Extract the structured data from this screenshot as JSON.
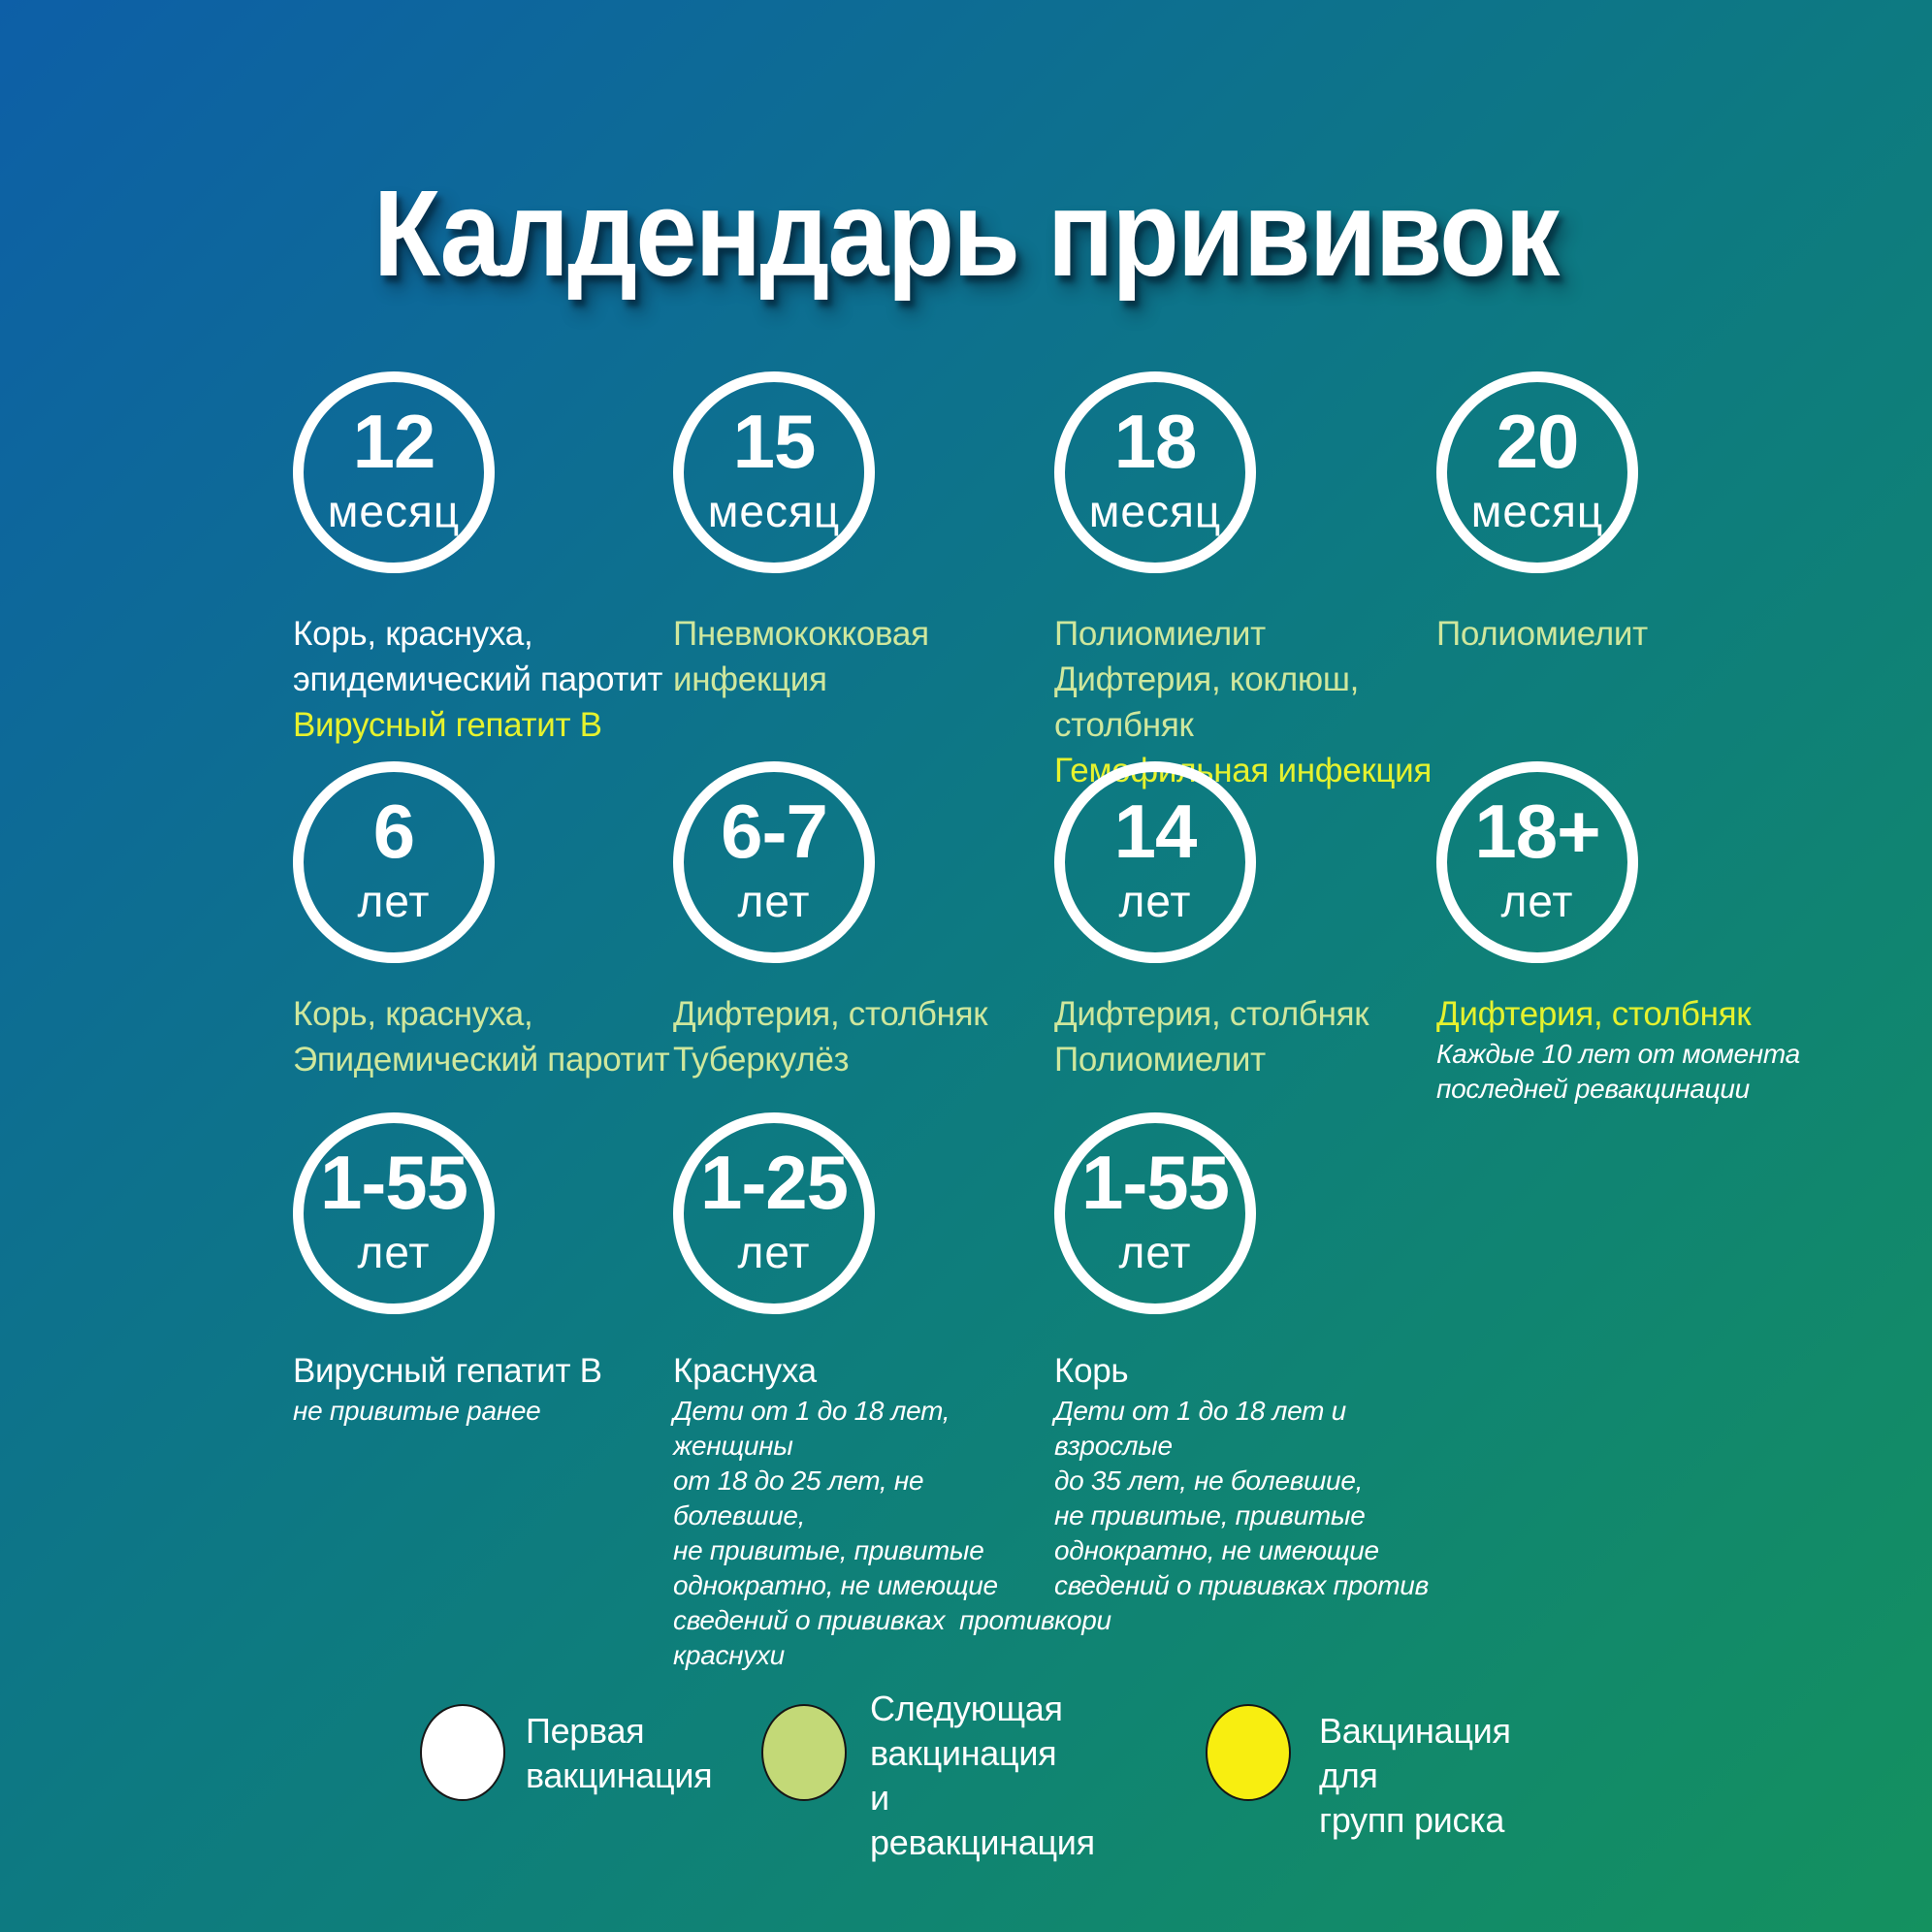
{
  "title": "Калдендарь прививок",
  "colors": {
    "white": "#ffffff",
    "green": "#cfe79d",
    "yellow": "#e6f22e",
    "legend_white": "#ffffff",
    "legend_green": "#c3d977",
    "legend_yellow": "#f8ee10"
  },
  "rows": [
    {
      "cells": [
        {
          "age": "12",
          "unit": "месяц",
          "lines": [
            {
              "text": "Корь, краснуха,",
              "color": "white"
            },
            {
              "text": "эпидемический паротит",
              "color": "white"
            },
            {
              "text": "Вирусный гепатит В",
              "color": "yellow"
            }
          ]
        },
        {
          "age": "15",
          "unit": "месяц",
          "lines": [
            {
              "text": "Пневмококковая",
              "color": "green"
            },
            {
              "text": "инфекция",
              "color": "green"
            }
          ]
        },
        {
          "age": "18",
          "unit": "месяц",
          "lines": [
            {
              "text": "Полиомиелит",
              "color": "green"
            },
            {
              "text": "Дифтерия, коклюш, столбняк",
              "color": "green"
            },
            {
              "text": "Гемофильная инфекция",
              "color": "yellow"
            }
          ]
        },
        {
          "age": "20",
          "unit": "месяц",
          "lines": [
            {
              "text": "Полиомиелит",
              "color": "green"
            }
          ]
        }
      ]
    },
    {
      "cells": [
        {
          "age": "6",
          "unit": "лет",
          "lines": [
            {
              "text": "Корь, краснуха,",
              "color": "green"
            },
            {
              "text": "Эпидемический паротит",
              "color": "green"
            }
          ]
        },
        {
          "age": "6-7",
          "unit": "лет",
          "lines": [
            {
              "text": "Дифтерия, столбняк",
              "color": "green"
            },
            {
              "text": "Туберкулёз",
              "color": "green"
            }
          ]
        },
        {
          "age": "14",
          "unit": "лет",
          "lines": [
            {
              "text": "Дифтерия, столбняк",
              "color": "green"
            },
            {
              "text": "Полиомиелит",
              "color": "green"
            }
          ]
        },
        {
          "age": "18+",
          "unit": "лет",
          "lines": [
            {
              "text": "Дифтерия, столбняк",
              "color": "yellow"
            },
            {
              "text": "Каждые 10 лет от момента",
              "color": "white",
              "italic": true
            },
            {
              "text": "последней ревакцинации",
              "color": "white",
              "italic": true
            }
          ]
        }
      ]
    },
    {
      "cells": [
        {
          "age": "1-55",
          "unit": "лет",
          "lines": [
            {
              "text": "Вирусный гепатит В",
              "color": "white"
            },
            {
              "text": "не привитые ранее",
              "color": "white",
              "italic": true
            }
          ]
        },
        {
          "age": "1-25",
          "unit": "лет",
          "lines": [
            {
              "text": "Краснуха",
              "color": "white"
            },
            {
              "text": "Дети от 1 до 18 лет, женщины",
              "color": "white",
              "italic": true
            },
            {
              "text": "от 18 до 25 лет, не болевшие,",
              "color": "white",
              "italic": true
            },
            {
              "text": "не привитые, привитые",
              "color": "white",
              "italic": true
            },
            {
              "text": "однократно, не имеющие",
              "color": "white",
              "italic": true
            },
            {
              "text": "сведений о прививках  против",
              "color": "white",
              "italic": true
            },
            {
              "text": "краснухи",
              "color": "white",
              "italic": true
            }
          ]
        },
        {
          "age": "1-55",
          "unit": "лет",
          "lines": [
            {
              "text": "Корь",
              "color": "white"
            },
            {
              "text": "Дети от 1 до 18 лет и взрослые",
              "color": "white",
              "italic": true
            },
            {
              "text": "до 35 лет, не болевшие,",
              "color": "white",
              "italic": true
            },
            {
              "text": "не привитые, привитые",
              "color": "white",
              "italic": true
            },
            {
              "text": "однократно, не имеющие",
              "color": "white",
              "italic": true
            },
            {
              "text": "сведений о прививках против",
              "color": "white",
              "italic": true
            },
            {
              "text": "кори",
              "color": "white",
              "italic": true
            }
          ]
        }
      ]
    }
  ],
  "legend": [
    {
      "key": "first-vaccination",
      "swatch": "legend_white",
      "label_lines": [
        "Первая",
        "вакцинация"
      ]
    },
    {
      "key": "next-vaccination",
      "swatch": "legend_green",
      "label_lines": [
        "Следующая",
        "вакцинация",
        "и ревакцинация"
      ]
    },
    {
      "key": "risk-groups",
      "swatch": "legend_yellow",
      "label_lines": [
        "Вакцинация для",
        "групп риска"
      ]
    }
  ]
}
